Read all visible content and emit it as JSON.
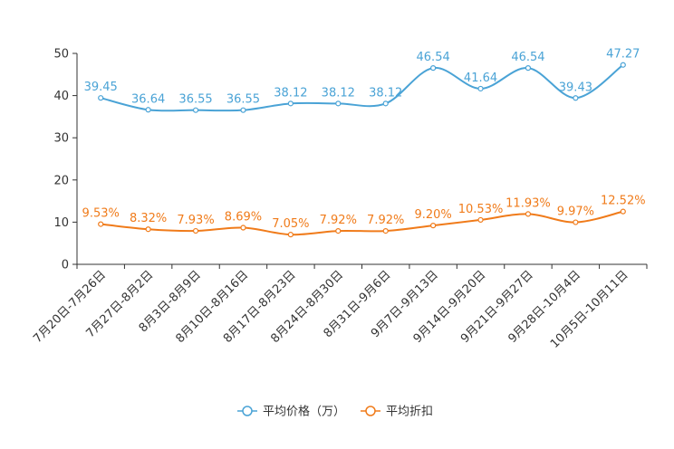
{
  "chart_data": {
    "type": "line",
    "title": "",
    "xlabel": "",
    "ylabel": "",
    "ylim": [
      0,
      50
    ],
    "yticks": [
      0,
      10,
      20,
      30,
      40,
      50
    ],
    "grid": false,
    "legend_position": "bottom-center",
    "categories": [
      "7月20日-7月26日",
      "7月27日-8月2日",
      "8月3日-8月9日",
      "8月10日-8月16日",
      "8月17日-8月23日",
      "8月24日-8月30日",
      "8月31日-9月6日",
      "9月7日-9月13日",
      "9月14日-9月20日",
      "9月21日-9月27日",
      "9月28日-10月4日",
      "10月5日-10月11日"
    ],
    "series": [
      {
        "name": "平均价格（万）",
        "color": "#4aa3d6",
        "values": [
          39.45,
          36.64,
          36.55,
          36.55,
          38.12,
          38.12,
          38.12,
          46.54,
          41.64,
          46.54,
          39.43,
          47.27
        ],
        "labels": [
          "39.45",
          "36.64",
          "36.55",
          "36.55",
          "38.12",
          "38.12",
          "38.12",
          "46.54",
          "41.64",
          "46.54",
          "39.43",
          "47.27"
        ]
      },
      {
        "name": "平均折扣",
        "color": "#f07b1a",
        "values": [
          9.53,
          8.32,
          7.93,
          8.69,
          7.05,
          7.92,
          7.92,
          9.2,
          10.53,
          11.93,
          9.97,
          12.52
        ],
        "labels": [
          "9.53%",
          "8.32%",
          "7.93%",
          "8.69%",
          "7.05%",
          "7.92%",
          "7.92%",
          "9.20%",
          "10.53%",
          "11.93%",
          "9.97%",
          "12.52%"
        ]
      }
    ]
  }
}
